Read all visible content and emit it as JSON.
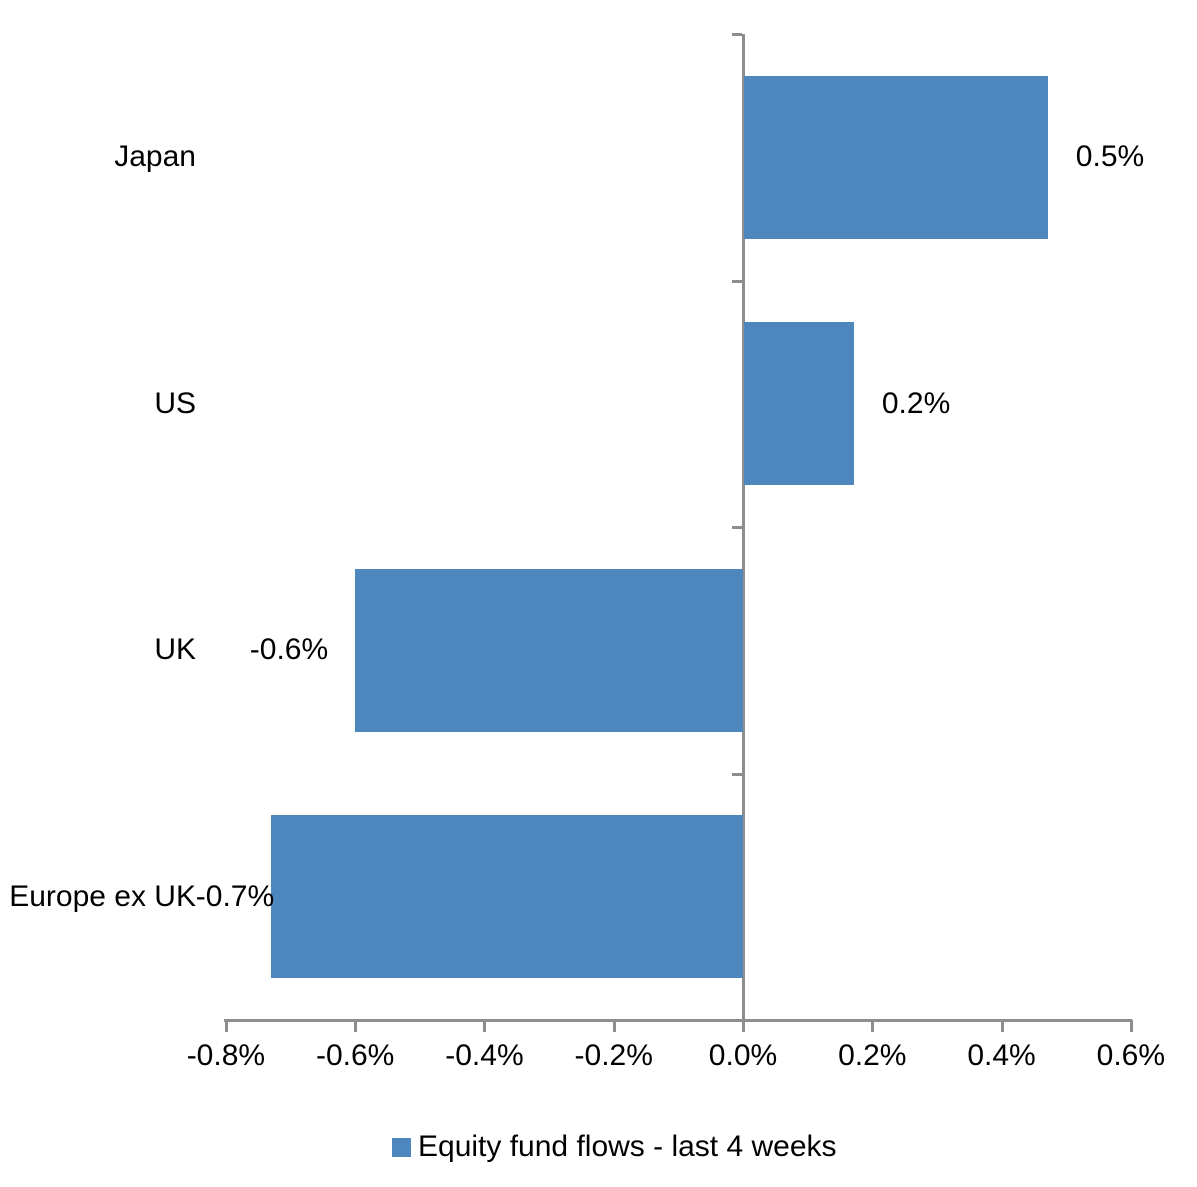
{
  "chart_data": {
    "type": "bar",
    "orientation": "horizontal",
    "title": "",
    "xlabel": "",
    "ylabel": "",
    "categories": [
      "Japan",
      "US",
      "UK",
      "Europe ex UK"
    ],
    "series": [
      {
        "name": "Equity fund flows - last 4 weeks",
        "values": [
          0.47,
          0.17,
          -0.6,
          -0.73
        ],
        "data_labels": [
          "0.5%",
          "0.2%",
          "-0.6%",
          "-0.7%"
        ]
      }
    ],
    "x_ticks": [
      "-0.8%",
      "-0.6%",
      "-0.4%",
      "-0.2%",
      "0.0%",
      "0.2%",
      "0.4%",
      "0.6%"
    ],
    "x_tick_values": [
      -0.8,
      -0.6,
      -0.4,
      -0.2,
      0.0,
      0.2,
      0.4,
      0.6
    ],
    "xlim": [
      -0.8,
      0.6
    ],
    "unit": "%",
    "grid": false,
    "legend_position": "bottom",
    "bar_color": "#4e86be",
    "axis_color": "#8e8e8e",
    "text_color": "#000000"
  },
  "legend": {
    "label": "Equity fund flows - last 4 weeks",
    "swatch_color": "#4e86be"
  }
}
